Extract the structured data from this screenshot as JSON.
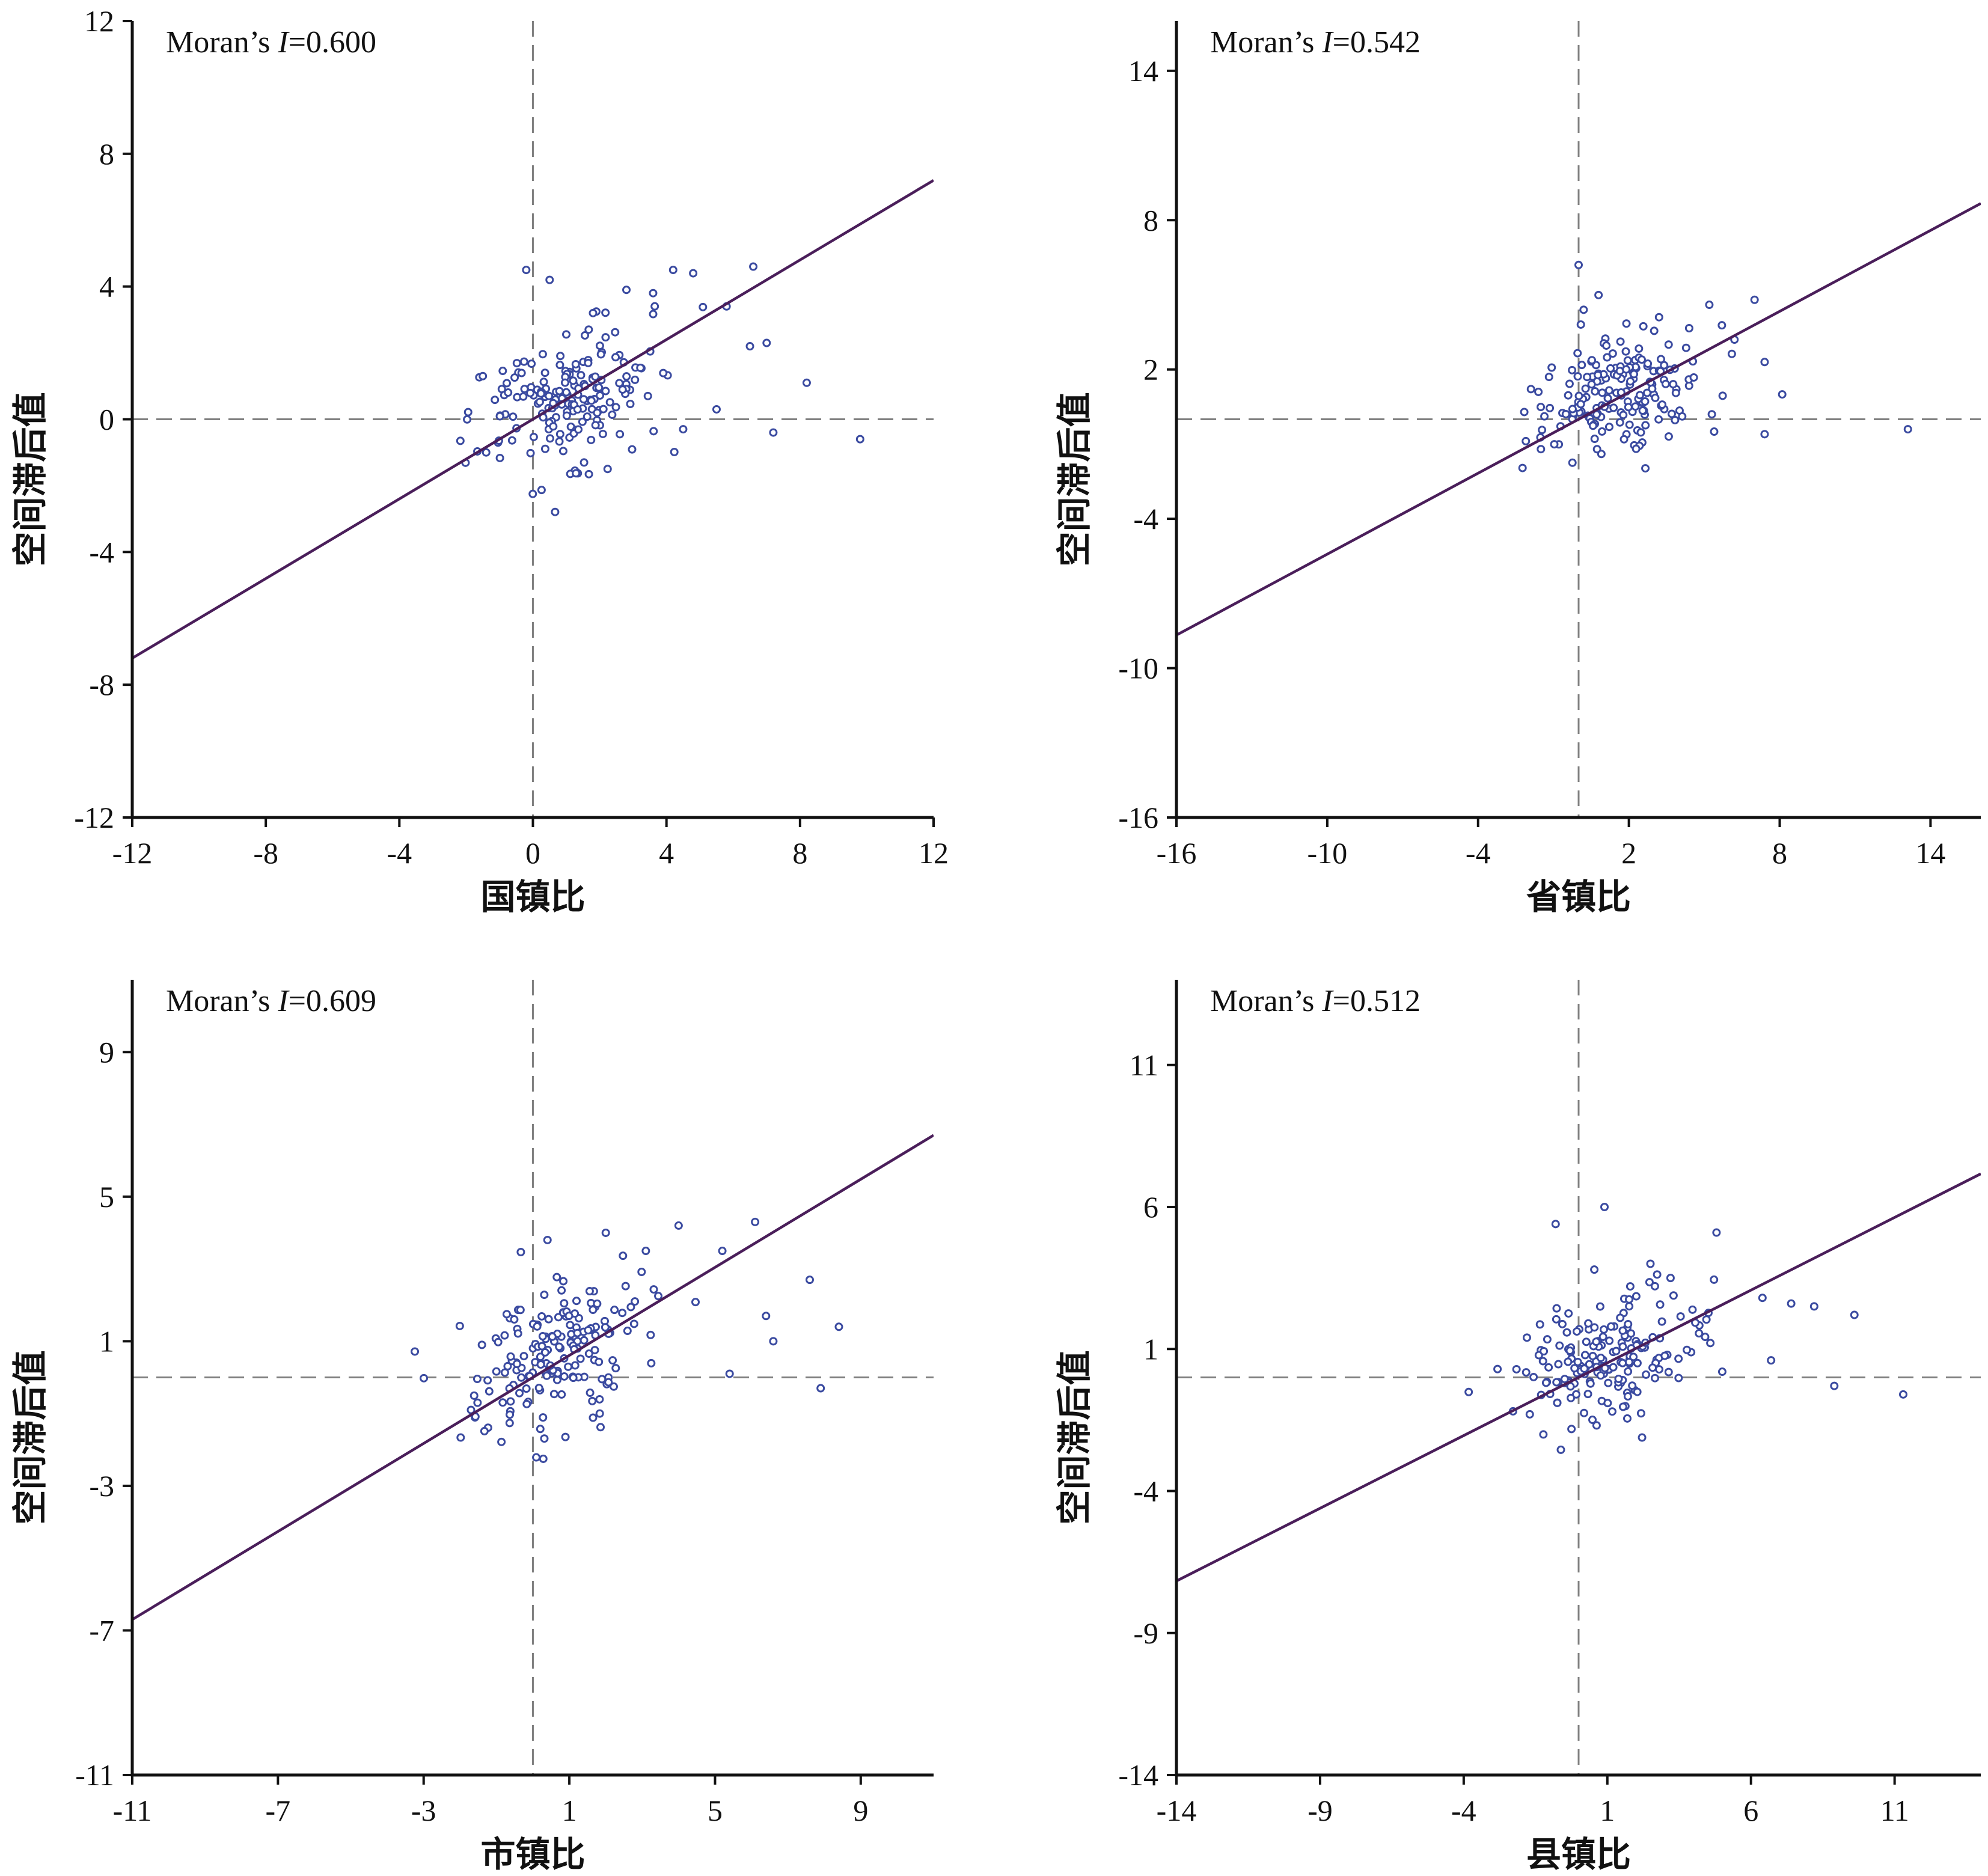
{
  "chart_data": [
    {
      "type": "scatter",
      "annotation": {
        "prefix": "Moran’s ",
        "italic": "I",
        "suffix": "=0.600"
      },
      "xlabel": "国镇比",
      "ylabel": "空间滞后值",
      "xlim": [
        -12,
        12
      ],
      "ylim": [
        -12,
        12
      ],
      "xticks": [
        -12,
        -8,
        -4,
        0,
        4,
        8,
        12
      ],
      "yticks": [
        -12,
        -8,
        -4,
        0,
        4,
        8,
        12
      ],
      "ref_x": 0,
      "ref_y": 0,
      "slope": 0.6,
      "cluster": {
        "center": [
          0.8,
          0.5
        ],
        "spread": [
          1.4,
          1.1
        ],
        "n": 180
      },
      "points": [
        [
          -0.2,
          4.5
        ],
        [
          0.5,
          4.2
        ],
        [
          4.2,
          4.5
        ],
        [
          6.6,
          4.6
        ],
        [
          7,
          2.3
        ],
        [
          8.2,
          1.1
        ],
        [
          9.8,
          -0.6
        ],
        [
          7.2,
          -0.4
        ],
        [
          6.5,
          2.2
        ],
        [
          5.5,
          0.3
        ],
        [
          4.5,
          -0.3
        ],
        [
          -1.5,
          1.3
        ],
        [
          -1.4,
          -1
        ],
        [
          2.8,
          3.9
        ],
        [
          3.6,
          3.8
        ],
        [
          5.8,
          3.4
        ],
        [
          4.8,
          4.4
        ],
        [
          1.8,
          3.2
        ]
      ],
      "marker_color": "#3a4aa0",
      "line_color": "#4a1e5a"
    },
    {
      "type": "scatter",
      "annotation": {
        "prefix": "Moran’s ",
        "italic": "I",
        "suffix": "=0.542"
      },
      "xlabel": "省镇比",
      "ylabel": "空间滞后值",
      "xlim": [
        -16,
        16
      ],
      "ylim": [
        -16,
        16
      ],
      "xticks": [
        -16,
        -10,
        -4,
        2,
        8,
        14
      ],
      "yticks": [
        -16,
        -10,
        -4,
        2,
        8,
        14
      ],
      "ref_x": 0,
      "ref_y": 0,
      "slope": 0.542,
      "cluster": {
        "center": [
          1.5,
          1
        ],
        "spread": [
          1.6,
          1.2
        ],
        "n": 180
      },
      "points": [
        [
          0,
          6.2
        ],
        [
          0.2,
          4.4
        ],
        [
          5.2,
          4.6
        ],
        [
          7,
          4.8
        ],
        [
          7.4,
          2.3
        ],
        [
          8.1,
          1
        ],
        [
          13.1,
          -0.4
        ],
        [
          7.4,
          -0.6
        ],
        [
          6.2,
          3.2
        ],
        [
          5.3,
          0.2
        ],
        [
          -1.6,
          1.1
        ],
        [
          -1.5,
          -1.2
        ],
        [
          3.2,
          4.1
        ]
      ],
      "marker_color": "#3a4aa0",
      "line_color": "#4a1e5a"
    },
    {
      "type": "scatter",
      "annotation": {
        "prefix": "Moran’s ",
        "italic": "I",
        "suffix": "=0.609"
      },
      "xlabel": "市镇比",
      "ylabel": "空间滞后值",
      "xlim": [
        -11,
        11
      ],
      "ylim": [
        -11,
        11
      ],
      "xticks": [
        -11,
        -7,
        -3,
        1,
        5,
        9
      ],
      "yticks": [
        -11,
        -7,
        -3,
        1,
        5,
        9
      ],
      "ref_x": 0,
      "ref_y": 0,
      "slope": 0.609,
      "cluster": {
        "center": [
          0.7,
          0.6
        ],
        "spread": [
          1.3,
          1.1
        ],
        "n": 180
      },
      "points": [
        [
          0.4,
          3.8
        ],
        [
          5.2,
          3.5
        ],
        [
          6.1,
          4.3
        ],
        [
          7.6,
          2.7
        ],
        [
          6.4,
          1.7
        ],
        [
          8.4,
          1.4
        ],
        [
          7.9,
          -0.3
        ],
        [
          5.4,
          0.1
        ],
        [
          -1.4,
          0.9
        ],
        [
          -1.7,
          -0.9
        ],
        [
          4,
          4.2
        ],
        [
          2,
          4
        ],
        [
          3.1,
          3.5
        ],
        [
          6.6,
          1
        ]
      ],
      "marker_color": "#3a4aa0",
      "line_color": "#4a1e5a"
    },
    {
      "type": "scatter",
      "annotation": {
        "prefix": "Moran’s ",
        "italic": "I",
        "suffix": "=0.512"
      },
      "xlabel": "县镇比",
      "ylabel": "空间滞后值",
      "xlim": [
        -14,
        14
      ],
      "ylim": [
        -14,
        14
      ],
      "xticks": [
        -14,
        -9,
        -4,
        1,
        6,
        11
      ],
      "yticks": [
        -14,
        -9,
        -4,
        1,
        6,
        11
      ],
      "ref_x": 0,
      "ref_y": 0,
      "slope": 0.512,
      "cluster": {
        "center": [
          1,
          0.8
        ],
        "spread": [
          1.5,
          1.1
        ],
        "n": 180
      },
      "points": [
        [
          -0.8,
          5.4
        ],
        [
          0.9,
          6
        ],
        [
          4.8,
          5.1
        ],
        [
          6.4,
          2.8
        ],
        [
          7.4,
          2.6
        ],
        [
          8.2,
          2.5
        ],
        [
          9.6,
          2.2
        ],
        [
          8.9,
          -0.3
        ],
        [
          11.3,
          -0.6
        ],
        [
          6.7,
          0.6
        ],
        [
          5,
          0.2
        ],
        [
          -1.8,
          1.4
        ],
        [
          -1.7,
          -1.3
        ],
        [
          3.2,
          3.5
        ],
        [
          2.5,
          4
        ]
      ],
      "marker_color": "#3a4aa0",
      "line_color": "#4a1e5a"
    }
  ]
}
